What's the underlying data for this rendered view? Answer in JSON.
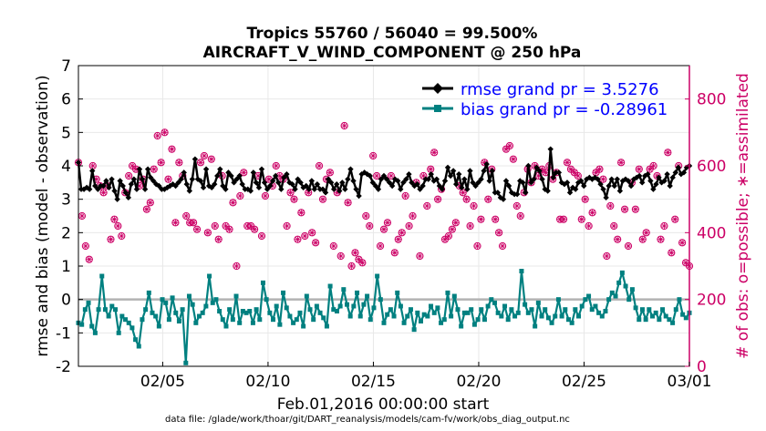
{
  "chart_data": {
    "type": "line",
    "title_line1": "Tropics 55760 / 56040 = 99.500%",
    "title_line2": "AIRCRAFT_V_WIND_COMPONENT @ 250 hPa",
    "ylabel_left": "rmse and bias (model - observation)",
    "ylabel_right": "# of obs: o=possible; ∗=assimilated",
    "xlabel": "Feb.01,2016 00:00:00 start",
    "footer": "data file: /glade/work/thoar/git/DART_reanalysis/models/cam-fv/work/obs_diag_output.nc",
    "x_range": [
      1,
      30
    ],
    "left_ylim": [
      -2,
      7
    ],
    "right_ylim": [
      0,
      900
    ],
    "x_ticks": [
      {
        "value": 5,
        "label": "02/05"
      },
      {
        "value": 10,
        "label": "02/10"
      },
      {
        "value": 15,
        "label": "02/15"
      },
      {
        "value": 20,
        "label": "02/20"
      },
      {
        "value": 25,
        "label": "02/25"
      },
      {
        "value": 30,
        "label": "03/01"
      }
    ],
    "left_ticks": [
      "-2",
      "-1",
      "0",
      "1",
      "2",
      "3",
      "4",
      "5",
      "6",
      "7"
    ],
    "right_ticks": [
      "0",
      "200",
      "400",
      "600",
      "800"
    ],
    "colors": {
      "rmse": "#000000",
      "bias": "#008080",
      "obs": "#cc0066",
      "zero_line": "#b3b3b3"
    },
    "legend": [
      {
        "name": "rmse grand pr = 3.5276",
        "color": "#0000ff"
      },
      {
        "name": "bias grand pr = -0.28961",
        "color": "#0000ff"
      }
    ],
    "rmse_values": [
      4.1,
      3.3,
      3.3,
      3.35,
      3.3,
      3.85,
      3.4,
      3.3,
      3.4,
      3.4,
      3.55,
      3.35,
      3.6,
      3.25,
      3.0,
      3.55,
      3.4,
      3.2,
      3.05,
      3.45,
      3.6,
      3.3,
      3.9,
      3.6,
      3.3,
      3.9,
      3.65,
      3.55,
      3.45,
      3.4,
      3.3,
      3.3,
      3.35,
      3.4,
      3.45,
      3.4,
      3.5,
      3.6,
      3.8,
      3.45,
      3.25,
      3.6,
      4.2,
      3.6,
      3.55,
      3.35,
      3.9,
      3.4,
      3.35,
      3.45,
      3.7,
      3.9,
      3.4,
      3.3,
      3.8,
      3.7,
      3.5,
      3.6,
      3.7,
      3.45,
      3.3,
      3.3,
      3.25,
      3.8,
      3.5,
      3.35,
      3.9,
      3.5,
      3.3,
      3.4,
      3.55,
      3.7,
      3.5,
      3.3,
      3.65,
      3.75,
      3.5,
      3.45,
      3.3,
      3.6,
      3.5,
      3.35,
      3.4,
      3.3,
      3.55,
      3.3,
      3.45,
      3.3,
      3.3,
      3.2,
      3.6,
      3.5,
      3.3,
      3.45,
      3.25,
      3.5,
      3.3,
      3.6,
      3.9,
      3.55,
      3.3,
      3.1,
      3.75,
      3.8,
      3.75,
      3.7,
      3.5,
      3.4,
      3.3,
      3.6,
      3.7,
      3.6,
      3.5,
      3.4,
      3.6,
      3.55,
      3.3,
      3.5,
      3.6,
      3.75,
      3.5,
      3.4,
      3.45,
      3.3,
      3.4,
      3.6,
      3.6,
      3.75,
      3.55,
      3.6,
      3.4,
      3.3,
      3.55,
      3.95,
      3.7,
      3.85,
      3.45,
      3.75,
      3.35,
      3.6,
      3.3,
      3.85,
      3.5,
      3.4,
      3.5,
      3.6,
      3.85,
      4.05,
      3.55,
      3.85,
      3.2,
      3.2,
      3.05,
      3.0,
      3.55,
      3.4,
      3.2,
      3.15,
      3.15,
      3.55,
      3.5,
      3.2,
      4.0,
      3.5,
      3.6,
      3.95,
      3.85,
      3.6,
      3.3,
      3.25,
      4.5,
      3.65,
      3.8,
      3.8,
      3.5,
      3.45,
      3.5,
      3.2,
      3.35,
      3.3,
      3.5,
      3.55,
      3.4,
      3.6,
      3.65,
      3.6,
      3.65,
      3.6,
      3.45,
      3.3,
      3.05,
      3.4,
      3.6,
      3.4,
      3.6,
      3.25,
      3.55,
      3.6,
      3.55,
      3.4,
      3.6,
      3.65,
      3.7,
      3.5,
      3.7,
      3.75,
      3.55,
      3.3,
      3.45,
      3.65,
      3.5,
      3.55,
      3.75,
      3.4,
      3.65,
      3.8,
      3.95,
      3.75,
      3.8,
      3.95,
      4.0
    ],
    "bias_values": [
      -0.7,
      -0.75,
      -0.3,
      -0.1,
      -0.8,
      -1.0,
      -0.3,
      0.7,
      -0.3,
      -0.5,
      -0.2,
      -0.3,
      -1.0,
      -0.5,
      -0.6,
      -0.7,
      -0.85,
      -1.2,
      -1.4,
      -0.6,
      -0.3,
      0.2,
      -0.4,
      -0.5,
      -0.8,
      0.0,
      -0.1,
      -0.6,
      0.05,
      -0.4,
      -0.65,
      -0.3,
      -1.9,
      0.1,
      -0.15,
      -0.7,
      -0.5,
      -0.4,
      -0.2,
      0.7,
      -0.1,
      0.0,
      -0.35,
      -0.6,
      -0.8,
      -0.3,
      -0.6,
      0.1,
      -0.7,
      -0.35,
      -0.4,
      -0.35,
      -0.7,
      -0.3,
      -0.6,
      0.5,
      0.0,
      -0.4,
      -0.6,
      -0.2,
      -0.75,
      0.2,
      -0.25,
      -0.5,
      -0.7,
      -0.6,
      -0.4,
      -0.8,
      0.1,
      -0.3,
      -0.6,
      -0.2,
      -0.4,
      -0.55,
      -0.8,
      0.4,
      -0.3,
      -0.35,
      -0.2,
      0.3,
      -0.15,
      -0.5,
      -0.2,
      0.2,
      -0.5,
      -0.15,
      0.1,
      -0.6,
      -0.25,
      0.7,
      0.0,
      -0.7,
      -0.45,
      -0.3,
      -0.5,
      0.2,
      -0.2,
      -0.7,
      -0.5,
      -0.3,
      -0.9,
      -0.4,
      -0.65,
      -0.45,
      -0.5,
      -0.2,
      -0.4,
      -0.25,
      -0.7,
      -0.6,
      0.2,
      -0.5,
      0.1,
      -0.3,
      -0.8,
      -0.4,
      -0.4,
      -0.3,
      -0.75,
      -0.6,
      -0.3,
      -0.6,
      -0.2,
      0.0,
      -0.1,
      -0.4,
      -0.5,
      -0.2,
      -0.6,
      -0.3,
      -0.5,
      -0.4,
      0.85,
      -0.15,
      -0.4,
      -0.3,
      -0.8,
      -0.1,
      -0.5,
      -0.3,
      -0.55,
      -0.7,
      -0.5,
      0.0,
      -0.5,
      -0.3,
      -0.6,
      -0.7,
      -0.3,
      -0.5,
      -0.2,
      0.0,
      0.1,
      -0.3,
      -0.2,
      -0.4,
      -0.5,
      -0.35,
      0.0,
      0.2,
      0.1,
      0.5,
      0.8,
      0.4,
      0.0,
      0.3,
      -0.25,
      -0.6,
      -0.3,
      -0.6,
      -0.3,
      -0.5,
      -0.4,
      -0.6,
      -0.3,
      -0.5,
      -0.6,
      -0.7,
      -0.3,
      0.0,
      -0.45,
      -0.55,
      -0.4
    ],
    "obs_values": [
      610,
      450,
      360,
      320,
      600,
      560,
      540,
      520,
      540,
      380,
      440,
      420,
      390,
      520,
      570,
      600,
      590,
      540,
      560,
      470,
      490,
      590,
      690,
      610,
      700,
      560,
      650,
      430,
      610,
      570,
      450,
      430,
      430,
      410,
      610,
      630,
      400,
      620,
      420,
      380,
      570,
      420,
      410,
      490,
      300,
      510,
      580,
      420,
      420,
      410,
      570,
      390,
      510,
      560,
      540,
      600,
      570,
      560,
      420,
      520,
      500,
      380,
      460,
      390,
      520,
      400,
      370,
      600,
      500,
      560,
      580,
      360,
      520,
      330,
      720,
      490,
      300,
      340,
      320,
      310,
      450,
      420,
      630,
      570,
      360,
      410,
      430,
      570,
      340,
      380,
      400,
      510,
      420,
      450,
      550,
      330,
      570,
      480,
      590,
      640,
      500,
      530,
      380,
      390,
      410,
      430,
      540,
      520,
      500,
      420,
      480,
      360,
      440,
      610,
      500,
      590,
      440,
      400,
      360,
      650,
      660,
      620,
      480,
      450,
      520,
      590,
      550,
      600,
      570,
      590,
      580,
      600,
      560,
      580,
      440,
      440,
      610,
      590,
      580,
      570,
      440,
      500,
      420,
      460,
      580,
      590,
      560,
      330,
      480,
      420,
      380,
      610,
      470,
      360,
      550,
      470,
      590,
      380,
      400,
      590,
      600,
      570,
      380,
      420,
      640,
      340,
      440,
      600,
      370,
      310,
      300
    ]
  }
}
